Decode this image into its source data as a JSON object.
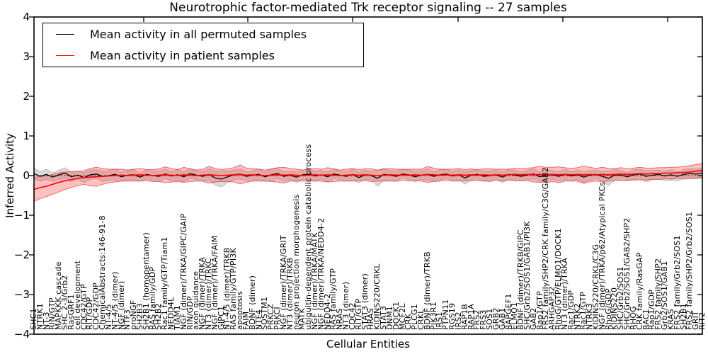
{
  "title": "Neurotrophic factor-mediated Trk receptor signaling -- 27 samples",
  "legend": [
    {
      "label": "Mean activity in all permuted samples",
      "color": "#000000"
    },
    {
      "label": "Mean activity in patient samples",
      "color": "#ff0000"
    }
  ],
  "axes": {
    "ylabel": "Inferred Activity",
    "xlabel": "Cellular Entities",
    "yticks": [
      4,
      3,
      2,
      1,
      0,
      -1,
      -2,
      -3,
      -4
    ],
    "ylim": [
      -4,
      4
    ]
  },
  "chart_data": {
    "type": "line",
    "title": "Neurotrophic factor-mediated Trk receptor signaling -- 27 samples",
    "xlabel": "Cellular Entities",
    "ylabel": "Inferred Activity",
    "ylim": [
      -4,
      4
    ],
    "grid": false,
    "zero_line": "dotted",
    "legend_position": "upper left",
    "categories": [
      "SHC1",
      "NTRK1",
      "NT-3",
      "RIN/GTP",
      "MAPKKK cascade",
      "SHC 2-3/Grb2",
      "RasGRF1",
      "cell development",
      "CDC42/GTP",
      "RIT/GDP",
      "CDC42/GDP",
      "ChemicalAbstracts:146-91-8",
      "NT-4/5",
      "NT-4/5 (dimer)",
      "NGF (dimer)",
      "NTF3",
      "proNGF",
      "SH2B3",
      "SH2B1 (homopentamer)",
      "RAS family/GDP",
      "SH2B2",
      "Rac1 family/GTP/Tiam1",
      "NEDD4L",
      "TIAM1",
      "NGF (dimer)/TRKA/GIPC/GAIP",
      "RIN/GDP",
      "axon guidance",
      "NGF (dimer)/TRKA",
      "NT3 (dimer)/TRKC",
      "NGF (dimer)/TRKA/FAIM",
      "GIPC1",
      "NT-4/5 (dimer)/TRKB",
      "RAS family/GTP/PI3K",
      "apoptosis",
      "FAIM",
      "BDNF (dimer)",
      "NTF4",
      "SQSTM1",
      "PRKCZ",
      "PRKCI",
      "NGF (dimer)/TRKA/GRIT",
      "NT3 (dimer)/TRKB",
      "neuron projection morphogenesis",
      "MATK",
      "ubiquitin-dependent protein catabolic process",
      "NGF (dimer)/TRKA/MATK",
      "NGF (dimer)/TRKA/NEDD4-2",
      "NEDD4-2",
      "RAS family/GTP",
      "NRAS",
      "NT3 (dimer)",
      "CDC42",
      "RIT/GTP",
      "STAT3 (dimer)",
      "HRAS",
      "KIDINS220/CRKL",
      "STAT3",
      "DNM1",
      "DOCK1",
      "MCF2L",
      "CRK",
      "PLCG1",
      "CRKL",
      "BDNF (dimer)/TRKB",
      "PIK3R1",
      "IRS1",
      "PTPN11",
      "RGS19",
      "IRS2",
      "RAP1B",
      "RAP1A",
      "FRS2",
      "FRS3",
      "SOS1",
      "GRB2",
      "GAB1",
      "RAPGEF1",
      "ELMO1",
      "BDNF (dimer)/TRKB/GIPC",
      "SHC/Grb2/SOS1/GAB1/PI3K",
      "GAB2",
      "Rap1/GTP",
      "FRS2 family/SHP2/CRK family/C3G/GAB2",
      "ARHGAP32",
      "RhoG/GTP/ELMO1/DOCK1",
      "NT3 (dimer)/TRKA",
      "Rac1/GDP",
      "NTRK2",
      "Rac1/GTP",
      "NTRK3",
      "KIDINS220/CRKL/C3G",
      "NGF (dimer)/TRKA/p62/Atypical PKCs",
      "RhoG/GDP",
      "KIDINS220",
      "SHC/Grb2/SOS1",
      "SHC/Grb2/SOS1/GAB2/SHP2",
      "RHOG",
      "CRK family/RasGAP",
      "RAC1",
      "Rap1/GDP",
      "FRS2 family/SHP2",
      "Grb2/SOS1/GAB1",
      "KRAS",
      "FRS2 family/Grb2/SOS1",
      "SH2B1",
      "FRS2 family/SHP2/Grb2/SOS1",
      "GRIT",
      "RIT2"
    ],
    "series": [
      {
        "name": "Mean activity in all permuted samples",
        "color": "#000000",
        "band_color": "#999999",
        "values": [
          0.05,
          -0.02,
          0.03,
          -0.04,
          0.02,
          0.06,
          -0.03,
          0.01,
          -0.05,
          0.02,
          0.04,
          -0.02,
          0.0,
          0.03,
          -0.03,
          0.01,
          0.02,
          -0.04,
          0.03,
          0.0,
          -0.02,
          0.04,
          -0.01,
          0.02,
          -0.03,
          0.05,
          0.01,
          -0.02,
          0.03,
          -0.06,
          -0.09,
          -0.03,
          0.02,
          0.04,
          -0.02,
          0.01,
          0.03,
          -0.03,
          0.02,
          0.05,
          -0.02,
          0.01,
          -0.04,
          0.02,
          0.03,
          -0.01,
          0.02,
          -0.03,
          0.04,
          0.01,
          -0.02,
          0.03,
          -0.05,
          0.02,
          0.0,
          -0.07,
          0.03,
          0.01,
          -0.02,
          0.04,
          0.02,
          -0.03,
          0.01,
          0.03,
          -0.02,
          0.02,
          0.04,
          -0.01,
          0.02,
          -0.06,
          0.01,
          0.03,
          -0.02,
          0.0,
          0.02,
          -0.04,
          0.03,
          0.01,
          -0.02,
          0.02,
          0.04,
          -0.03,
          0.01,
          0.02,
          -0.02,
          0.03,
          -0.01,
          0.02,
          -0.04,
          0.01,
          0.03,
          -0.02,
          -0.07,
          0.02,
          0.01,
          -0.03,
          0.02,
          0.04,
          -0.02,
          0.01,
          0.03,
          -0.01,
          0.02,
          -0.02,
          0.03,
          0.05,
          0.04,
          0.06
        ],
        "band_halfwidth": [
          0.14,
          0.12,
          0.13,
          0.11,
          0.12,
          0.14,
          0.12,
          0.1,
          0.13,
          0.12,
          0.11,
          0.13,
          0.12,
          0.14,
          0.11,
          0.12,
          0.13,
          0.1,
          0.12,
          0.11,
          0.13,
          0.12,
          0.11,
          0.14,
          0.12,
          0.13,
          0.11,
          0.12,
          0.14,
          0.18,
          0.2,
          0.14,
          0.12,
          0.13,
          0.11,
          0.12,
          0.14,
          0.12,
          0.15,
          0.13,
          0.12,
          0.11,
          0.13,
          0.12,
          0.14,
          0.12,
          0.11,
          0.13,
          0.12,
          0.11,
          0.12,
          0.14,
          0.13,
          0.12,
          0.11,
          0.2,
          0.16,
          0.12,
          0.13,
          0.11,
          0.12,
          0.13,
          0.11,
          0.14,
          0.12,
          0.13,
          0.12,
          0.11,
          0.13,
          0.16,
          0.12,
          0.11,
          0.13,
          0.12,
          0.11,
          0.14,
          0.12,
          0.13,
          0.11,
          0.12,
          0.13,
          0.12,
          0.14,
          0.11,
          0.12,
          0.13,
          0.11,
          0.12,
          0.14,
          0.12,
          0.11,
          0.13,
          0.18,
          0.14,
          0.12,
          0.11,
          0.13,
          0.12,
          0.14,
          0.12,
          0.11,
          0.12,
          0.13,
          0.11,
          0.12,
          0.13,
          0.12,
          0.13
        ]
      },
      {
        "name": "Mean activity in patient samples",
        "color": "#ff0000",
        "band_color": "#ff4040",
        "values": [
          -0.35,
          -0.3,
          -0.27,
          -0.22,
          -0.17,
          -0.13,
          -0.1,
          -0.07,
          -0.05,
          -0.04,
          -0.03,
          -0.02,
          -0.01,
          0.0,
          0.01,
          0.0,
          0.01,
          0.02,
          0.01,
          0.0,
          0.01,
          0.02,
          0.01,
          0.0,
          0.02,
          0.01,
          0.0,
          0.01,
          0.02,
          0.01,
          0.0,
          0.01,
          0.02,
          0.03,
          0.01,
          0.02,
          0.01,
          0.0,
          0.01,
          0.02,
          0.01,
          0.02,
          0.01,
          0.0,
          0.01,
          0.02,
          0.01,
          0.02,
          0.01,
          0.0,
          0.01,
          0.02,
          0.01,
          0.02,
          0.01,
          0.0,
          0.01,
          0.02,
          0.01,
          0.02,
          0.01,
          0.02,
          0.01,
          0.03,
          0.02,
          0.01,
          0.02,
          0.01,
          0.02,
          0.01,
          0.02,
          0.01,
          0.02,
          0.01,
          0.02,
          0.01,
          0.02,
          0.03,
          0.02,
          0.03,
          0.02,
          0.03,
          0.02,
          0.03,
          0.02,
          0.03,
          0.02,
          0.03,
          0.02,
          0.03,
          0.02,
          0.03,
          0.02,
          0.03,
          0.04,
          0.03,
          0.04,
          0.05,
          0.04,
          0.05,
          0.05,
          0.06,
          0.06,
          0.07,
          0.08,
          0.09,
          0.11,
          0.13
        ],
        "band_halfwidth": [
          0.3,
          0.28,
          0.26,
          0.25,
          0.24,
          0.22,
          0.2,
          0.18,
          0.17,
          0.22,
          0.24,
          0.2,
          0.17,
          0.16,
          0.15,
          0.14,
          0.15,
          0.16,
          0.14,
          0.15,
          0.16,
          0.2,
          0.17,
          0.15,
          0.19,
          0.16,
          0.14,
          0.15,
          0.21,
          0.17,
          0.15,
          0.16,
          0.18,
          0.24,
          0.18,
          0.16,
          0.15,
          0.14,
          0.16,
          0.18,
          0.2,
          0.16,
          0.15,
          0.14,
          0.15,
          0.16,
          0.15,
          0.18,
          0.16,
          0.14,
          0.15,
          0.16,
          0.14,
          0.15,
          0.16,
          0.14,
          0.15,
          0.16,
          0.15,
          0.14,
          0.15,
          0.14,
          0.15,
          0.2,
          0.17,
          0.15,
          0.14,
          0.15,
          0.16,
          0.14,
          0.15,
          0.14,
          0.15,
          0.16,
          0.14,
          0.15,
          0.14,
          0.16,
          0.15,
          0.16,
          0.18,
          0.2,
          0.19,
          0.18,
          0.2,
          0.17,
          0.16,
          0.17,
          0.22,
          0.18,
          0.16,
          0.18,
          0.16,
          0.15,
          0.16,
          0.14,
          0.15,
          0.16,
          0.15,
          0.14,
          0.15,
          0.14,
          0.15,
          0.14,
          0.15,
          0.16,
          0.17,
          0.18
        ]
      }
    ]
  }
}
